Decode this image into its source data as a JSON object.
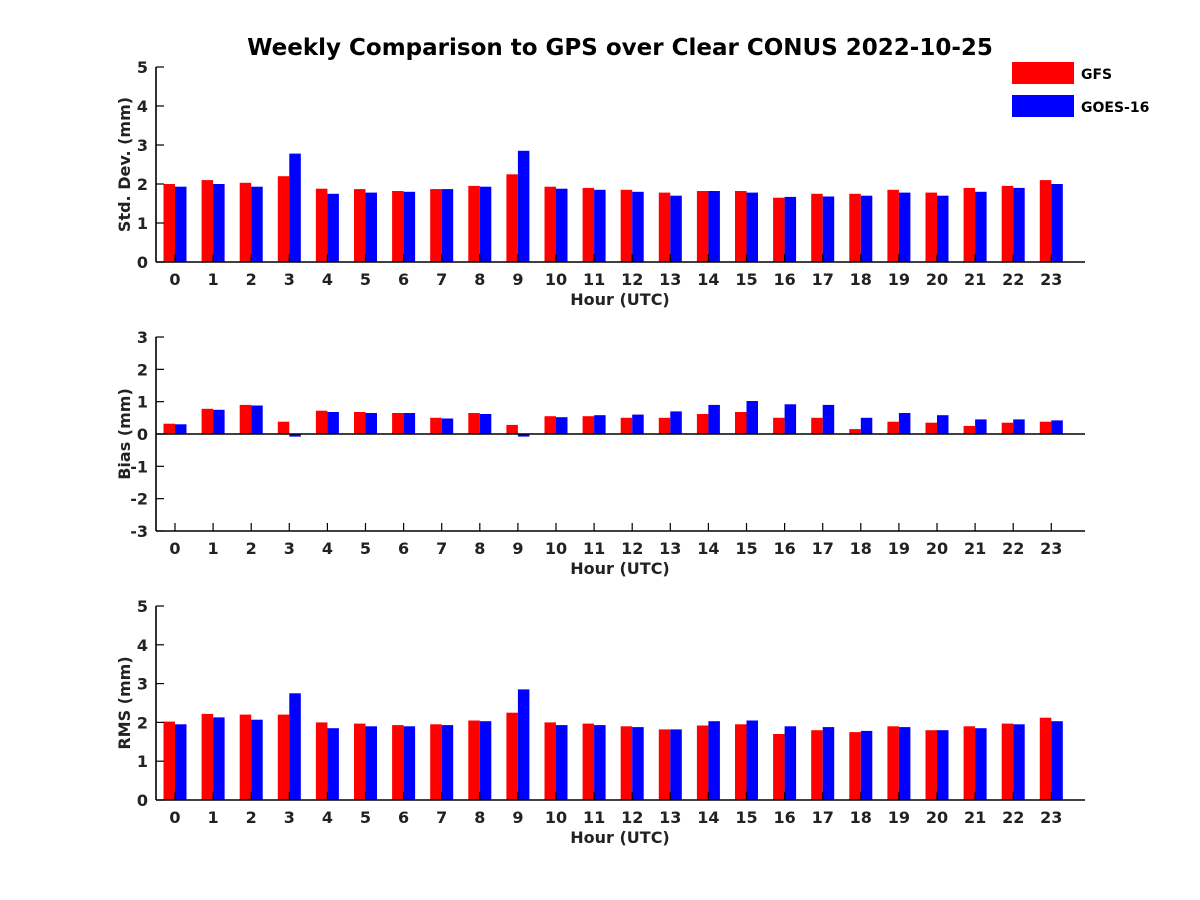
{
  "title": "Weekly Comparison to GPS over Clear CONUS 2022-10-25",
  "legend": [
    {
      "label": "GFS",
      "color": "#ff0000"
    },
    {
      "label": "GOES-16",
      "color": "#0000ff"
    }
  ],
  "chart_data": [
    {
      "type": "bar",
      "title": "Weekly Comparison to GPS over Clear CONUS 2022-10-25",
      "xlabel": "Hour (UTC)",
      "ylabel": "Std. Dev. (mm)",
      "ylim": [
        0,
        5
      ],
      "yticks": [
        0,
        1,
        2,
        3,
        4,
        5
      ],
      "categories": [
        "0",
        "1",
        "2",
        "3",
        "4",
        "5",
        "6",
        "7",
        "8",
        "9",
        "10",
        "11",
        "12",
        "13",
        "14",
        "15",
        "16",
        "17",
        "18",
        "19",
        "20",
        "21",
        "22",
        "23"
      ],
      "legend_position": "top-right",
      "grid": false,
      "series": [
        {
          "name": "GFS",
          "color": "#ff0000",
          "values": [
            2.0,
            2.1,
            2.03,
            2.2,
            1.88,
            1.87,
            1.82,
            1.87,
            1.95,
            2.25,
            1.93,
            1.9,
            1.85,
            1.78,
            1.82,
            1.82,
            1.65,
            1.75,
            1.75,
            1.85,
            1.78,
            1.9,
            1.95,
            2.1
          ]
        },
        {
          "name": "GOES-16",
          "color": "#0000ff",
          "values": [
            1.93,
            2.0,
            1.93,
            2.78,
            1.75,
            1.78,
            1.8,
            1.87,
            1.93,
            2.85,
            1.88,
            1.85,
            1.8,
            1.7,
            1.82,
            1.78,
            1.67,
            1.68,
            1.7,
            1.78,
            1.7,
            1.8,
            1.9,
            2.0
          ]
        }
      ]
    },
    {
      "type": "bar",
      "xlabel": "Hour (UTC)",
      "ylabel": "Bias (mm)",
      "ylim": [
        -3,
        3
      ],
      "yticks": [
        -3,
        -2,
        -1,
        0,
        1,
        2,
        3
      ],
      "categories": [
        "0",
        "1",
        "2",
        "3",
        "4",
        "5",
        "6",
        "7",
        "8",
        "9",
        "10",
        "11",
        "12",
        "13",
        "14",
        "15",
        "16",
        "17",
        "18",
        "19",
        "20",
        "21",
        "22",
        "23"
      ],
      "grid": false,
      "series": [
        {
          "name": "GFS",
          "color": "#ff0000",
          "values": [
            0.32,
            0.78,
            0.9,
            0.38,
            0.72,
            0.68,
            0.65,
            0.5,
            0.65,
            0.28,
            0.55,
            0.55,
            0.5,
            0.5,
            0.62,
            0.68,
            0.5,
            0.5,
            0.15,
            0.38,
            0.35,
            0.25,
            0.35,
            0.38
          ]
        },
        {
          "name": "GOES-16",
          "color": "#0000ff",
          "values": [
            0.3,
            0.75,
            0.88,
            -0.08,
            0.68,
            0.65,
            0.65,
            0.48,
            0.62,
            -0.08,
            0.52,
            0.58,
            0.6,
            0.7,
            0.9,
            1.02,
            0.92,
            0.9,
            0.5,
            0.65,
            0.58,
            0.45,
            0.45,
            0.42
          ]
        }
      ]
    },
    {
      "type": "bar",
      "xlabel": "Hour (UTC)",
      "ylabel": "RMS (mm)",
      "ylim": [
        0,
        5
      ],
      "yticks": [
        0,
        1,
        2,
        3,
        4,
        5
      ],
      "categories": [
        "0",
        "1",
        "2",
        "3",
        "4",
        "5",
        "6",
        "7",
        "8",
        "9",
        "10",
        "11",
        "12",
        "13",
        "14",
        "15",
        "16",
        "17",
        "18",
        "19",
        "20",
        "21",
        "22",
        "23"
      ],
      "grid": false,
      "series": [
        {
          "name": "GFS",
          "color": "#ff0000",
          "values": [
            2.02,
            2.22,
            2.2,
            2.2,
            2.0,
            1.97,
            1.93,
            1.95,
            2.05,
            2.25,
            2.0,
            1.97,
            1.9,
            1.82,
            1.92,
            1.95,
            1.7,
            1.8,
            1.75,
            1.9,
            1.8,
            1.9,
            1.97,
            2.12
          ]
        },
        {
          "name": "GOES-16",
          "color": "#0000ff",
          "values": [
            1.95,
            2.13,
            2.07,
            2.75,
            1.85,
            1.9,
            1.9,
            1.93,
            2.03,
            2.85,
            1.93,
            1.93,
            1.88,
            1.82,
            2.03,
            2.05,
            1.9,
            1.88,
            1.78,
            1.88,
            1.8,
            1.85,
            1.95,
            2.03
          ]
        }
      ]
    }
  ]
}
